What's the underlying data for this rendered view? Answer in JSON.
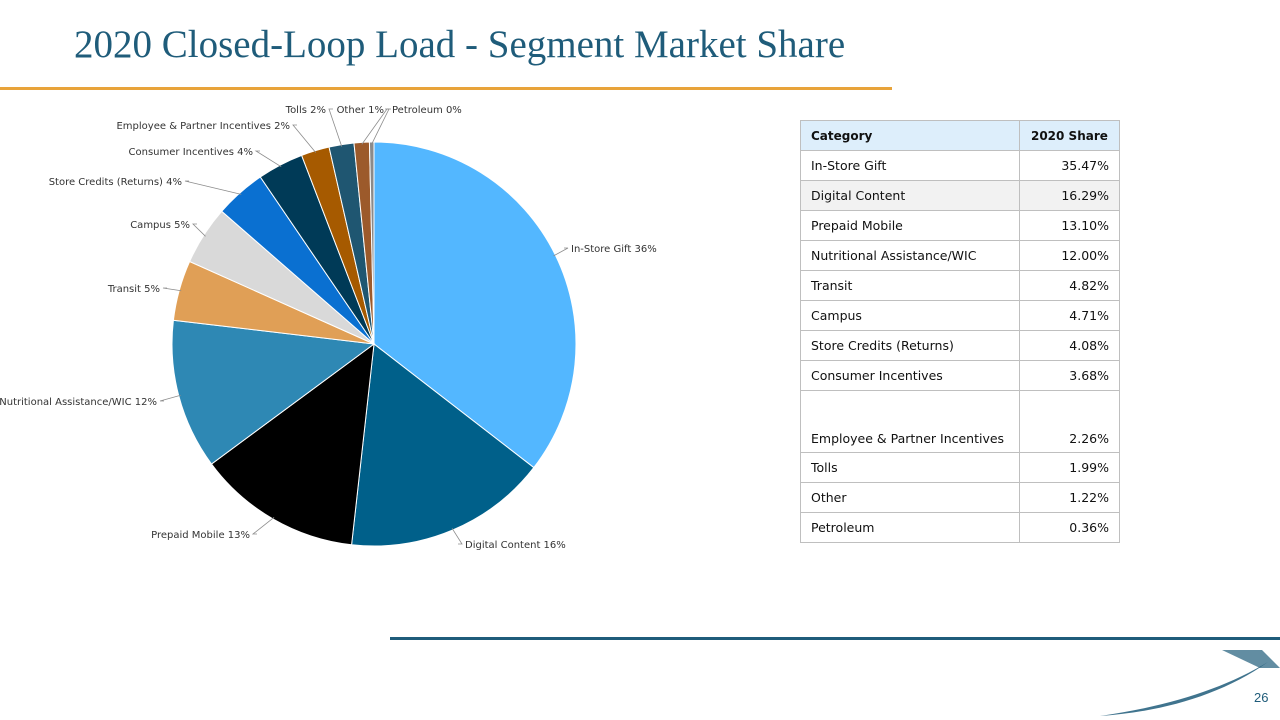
{
  "title": "2020 Closed-Loop Load - Segment Market Share",
  "page_number": "26",
  "colors": {
    "title": "#1f5c7a",
    "accent_rule": "#e8a33a",
    "footer_rule": "#1f5c7a"
  },
  "chart_data": {
    "type": "pie",
    "start_angle_deg": 0,
    "direction": "clockwise",
    "slices": [
      {
        "label": "In-Store Gift 36%",
        "value": 35.47,
        "color": "#53b7ff"
      },
      {
        "label": "Digital Content  16%",
        "value": 16.29,
        "color": "#00608a"
      },
      {
        "label": "Prepaid Mobile 13%",
        "value": 13.1,
        "color": "#000000"
      },
      {
        "label": "Nutritional Assistance/WIC 12%",
        "value": 12.0,
        "color": "#2e88b4"
      },
      {
        "label": "Transit 5%",
        "value": 4.82,
        "color": "#e09f56"
      },
      {
        "label": "Campus 5%",
        "value": 4.71,
        "color": "#d9d9d9"
      },
      {
        "label": "Store Credits (Returns) 4%",
        "value": 4.08,
        "color": "#0a70d1"
      },
      {
        "label": "Consumer Incentives 4%",
        "value": 3.68,
        "color": "#003a57"
      },
      {
        "label": "Employee & Partner Incentives 2%",
        "value": 2.26,
        "color": "#a65a00"
      },
      {
        "label": "Tolls  2%",
        "value": 1.99,
        "color": "#1f5671"
      },
      {
        "label": "Other 1%",
        "value": 1.22,
        "color": "#9c5a2b"
      },
      {
        "label": "Petroleum 0%",
        "value": 0.36,
        "color": "#8a8a8a"
      }
    ]
  },
  "table": {
    "headers": [
      "Category",
      "2020 Share"
    ],
    "rows": [
      [
        "In-Store Gift",
        "35.47%"
      ],
      [
        "Digital Content",
        "16.29%"
      ],
      [
        "Prepaid Mobile",
        "13.10%"
      ],
      [
        "Nutritional Assistance/WIC",
        "12.00%"
      ],
      [
        "Transit",
        "4.82%"
      ],
      [
        "Campus",
        "4.71%"
      ],
      [
        "Store Credits (Returns)",
        "4.08%"
      ],
      [
        "Consumer Incentives",
        "3.68%"
      ],
      [
        "Employee & Partner Incentives",
        "2.26%"
      ],
      [
        "Tolls",
        "1.99%"
      ],
      [
        "Other",
        "1.22%"
      ],
      [
        "Petroleum",
        "0.36%"
      ]
    ]
  }
}
